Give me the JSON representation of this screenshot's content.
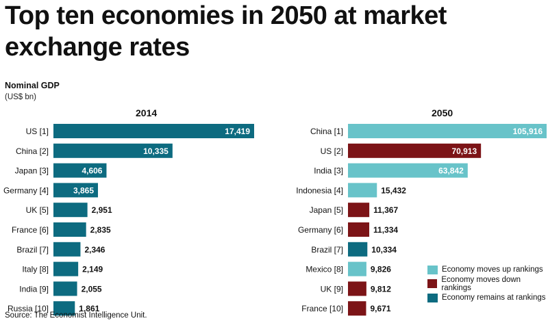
{
  "title": "Top ten economies in 2050 at market exchange rates",
  "subtitle": "Nominal GDP",
  "unit": "(US$ bn)",
  "colors": {
    "up": "#68c3c9",
    "down": "#7c1417",
    "same": "#0d6b80"
  },
  "chart_data": [
    {
      "type": "bar",
      "orientation": "horizontal",
      "title": "2014",
      "categories": [
        "US [1]",
        "China [2]",
        "Japan [3]",
        "Germany [4]",
        "UK [5]",
        "France [6]",
        "Brazil [7]",
        "Italy [8]",
        "India [9]",
        "Russia [10]"
      ],
      "values": [
        17419,
        10335,
        4606,
        3865,
        2951,
        2835,
        2346,
        2149,
        2055,
        1861
      ],
      "labels": [
        "17,419",
        "10,335",
        "4,606",
        "3,865",
        "2,951",
        "2,835",
        "2,346",
        "2,149",
        "2,055",
        "1,861"
      ],
      "status": [
        "same",
        "same",
        "same",
        "same",
        "same",
        "same",
        "same",
        "same",
        "same",
        "same"
      ],
      "xlim": [
        0,
        17419
      ]
    },
    {
      "type": "bar",
      "orientation": "horizontal",
      "title": "2050",
      "categories": [
        "China [1]",
        "US [2]",
        "India [3]",
        "Indonesia [4]",
        "Japan [5]",
        "Germany [6]",
        "Brazil [7]",
        "Mexico [8]",
        "UK [9]",
        "France [10]"
      ],
      "values": [
        105916,
        70913,
        63842,
        15432,
        11367,
        11334,
        10334,
        9826,
        9812,
        9671
      ],
      "labels": [
        "105,916",
        "70,913",
        "63,842",
        "15,432",
        "11,367",
        "11,334",
        "10,334",
        "9,826",
        "9,812",
        "9,671"
      ],
      "status": [
        "up",
        "down",
        "up",
        "up",
        "down",
        "down",
        "same",
        "up",
        "down",
        "down"
      ],
      "xlim": [
        0,
        105916
      ]
    }
  ],
  "legend": [
    {
      "label": "Economy moves up rankings",
      "color": "#68c3c9"
    },
    {
      "label": "Economy moves down rankings",
      "color": "#7c1417"
    },
    {
      "label": "Economy remains at rankings",
      "color": "#0d6b80"
    }
  ],
  "source": "Source: The Economist Intelligence Unit."
}
